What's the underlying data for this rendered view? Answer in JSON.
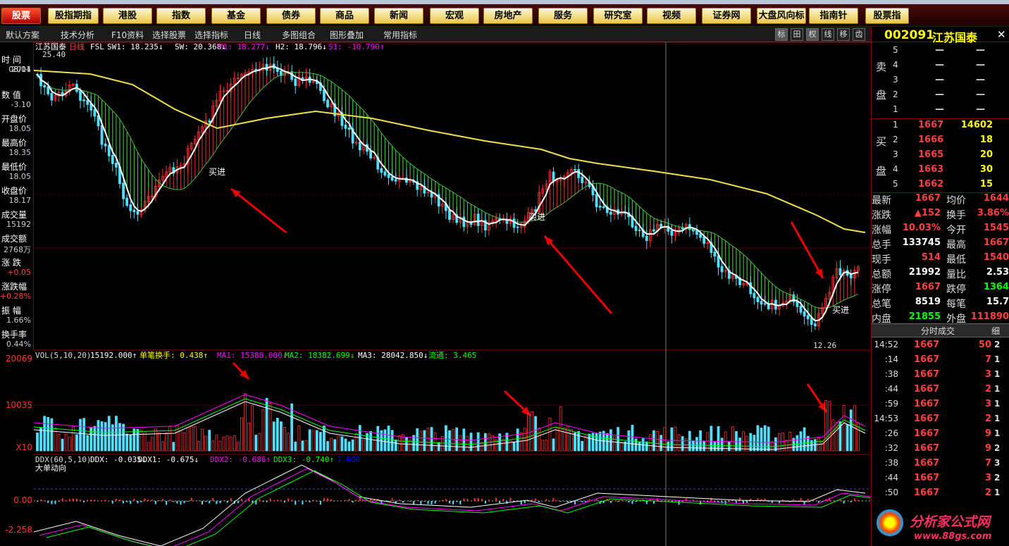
{
  "nav": {
    "buttons": [
      "股票",
      "股指期指",
      "港股",
      "指数",
      "基金",
      "债券",
      "商品",
      "新闻",
      "宏观",
      "房地产",
      "服务",
      "研究室",
      "视频",
      "证券网",
      "大盘风向标",
      "指南针",
      "股票指"
    ]
  },
  "toolbar": {
    "items": [
      "默认方案",
      "技术分析",
      "F10资料",
      "选择股票",
      "选择指标",
      "日线",
      "多图组合",
      "图形叠加",
      "常用指标"
    ],
    "right_tabs": [
      "标",
      "田",
      "权",
      "线",
      "移",
      "齿"
    ]
  },
  "stock": {
    "code": "002091",
    "name": "江苏国泰",
    "period": "日线"
  },
  "leftpanel": [
    {
      "label": "时  间",
      "value": "2011"
    },
    {
      "label": "",
      "value": "08/04"
    },
    {
      "label": "数  值",
      "value": "-3.10"
    },
    {
      "label": "开盘价",
      "value": "18.05"
    },
    {
      "label": "最高价",
      "value": "18.35"
    },
    {
      "label": "最低价",
      "value": "18.05"
    },
    {
      "label": "收盘价",
      "value": "18.17"
    },
    {
      "label": "成交量",
      "value": "15192"
    },
    {
      "label": "成交额",
      "value": "2768万"
    },
    {
      "label": "涨  跌",
      "value": "+0.05"
    },
    {
      "label": "涨跌幅",
      "value": "+0.28%"
    },
    {
      "label": "振  幅",
      "value": "1.66%"
    },
    {
      "label": "换手率",
      "value": "0.44%"
    }
  ],
  "main_header": {
    "name": "江苏国泰",
    "period": "日线",
    "fsl": "FSL",
    "sw1": "SW1: 18.235↓",
    "sw": "SW: 20.368↓",
    "m1": "M1: 18.277↓",
    "h2": "H2: 18.796↓",
    "s1": "S1: -10.790↑",
    "top_price": "25.40",
    "low_price": "12.26",
    "buy_label": "买进"
  },
  "vol_header": {
    "label": "VOL(5,10,20)",
    "vol": "15192.000↑",
    "turnover": "单笔换手: 0.438↑",
    "ma1": "MA1: 15388.000↓",
    "ma2": "MA2: 18382.699↓",
    "ma3": "MA3: 28042.850↓",
    "flow": "流通: 3.465"
  },
  "vol_axis": {
    "top": "20069",
    "mid": "10035",
    "unit": "X10"
  },
  "ddx_header": {
    "label": "DDX(60,5,10)",
    "ddx": "DDX: -0.035↓",
    "ddx1": "DDX1: -0.675↓",
    "ddx2": "DDX2: -0.686↑",
    "ddx3": "DDX3: -0.740↑",
    "v": "1.000",
    "sub": "大单动向"
  },
  "ddx_axis": {
    "zero": "0.00",
    "low": "-2.258"
  },
  "quote": {
    "sell": [
      {
        "n": "5",
        "p": "—",
        "v": "—"
      },
      {
        "n": "4",
        "p": "—",
        "v": "—"
      },
      {
        "n": "3",
        "p": "—",
        "v": "—"
      },
      {
        "n": "2",
        "p": "—",
        "v": "—"
      },
      {
        "n": "1",
        "p": "—",
        "v": "—"
      }
    ],
    "buy": [
      {
        "n": "1",
        "p": "1667",
        "v": "14602"
      },
      {
        "n": "2",
        "p": "1666",
        "v": "18"
      },
      {
        "n": "3",
        "p": "1665",
        "v": "20"
      },
      {
        "n": "4",
        "p": "1663",
        "v": "30"
      },
      {
        "n": "5",
        "p": "1662",
        "v": "15"
      }
    ],
    "sell_label": [
      "卖",
      "盘"
    ],
    "buy_label": [
      "买",
      "盘"
    ],
    "stats": [
      [
        "最新",
        "1667",
        "均价",
        "1644"
      ],
      [
        "涨跌",
        "▲152",
        "换手",
        "3.86%"
      ],
      [
        "涨幅",
        "10.03%",
        "今开",
        "1545"
      ],
      [
        "总手",
        "133745",
        "最高",
        "1667"
      ],
      [
        "现手",
        "514",
        "最低",
        "1540"
      ],
      [
        "总额",
        "21992",
        "量比",
        "2.53"
      ],
      [
        "涨停",
        "1667",
        "跌停",
        "1364"
      ],
      [
        "总笔",
        "8519",
        "每笔",
        "15.7"
      ],
      [
        "内盘",
        "21855",
        "外盘",
        "111890"
      ]
    ],
    "trades_title": "分时成交",
    "trades_tab": "细",
    "trades": [
      [
        "14:52",
        "1667",
        "50",
        "2"
      ],
      [
        ":14",
        "1667",
        "7",
        "1"
      ],
      [
        ":38",
        "1667",
        "3",
        "1"
      ],
      [
        ":44",
        "1667",
        "2",
        "1"
      ],
      [
        ":59",
        "1667",
        "3",
        "1"
      ],
      [
        "14:53",
        "1667",
        "2",
        "1"
      ],
      [
        ":26",
        "1667",
        "9",
        "1"
      ],
      [
        ":32",
        "1667",
        "9",
        "2"
      ],
      [
        ":38",
        "1667",
        "7",
        "3"
      ],
      [
        ":44",
        "1667",
        "3",
        "2"
      ],
      [
        ":50",
        "1667",
        "2",
        "1"
      ]
    ]
  },
  "watermark": {
    "text": "分析家公式网",
    "url": "www.88gs.com"
  },
  "colors": {
    "up": "#ff3030",
    "down": "#50e0ff",
    "ma_yellow": "#f0e050",
    "ma_white": "#ffffff",
    "band_green": "#40d040",
    "band_red": "#d03030"
  }
}
